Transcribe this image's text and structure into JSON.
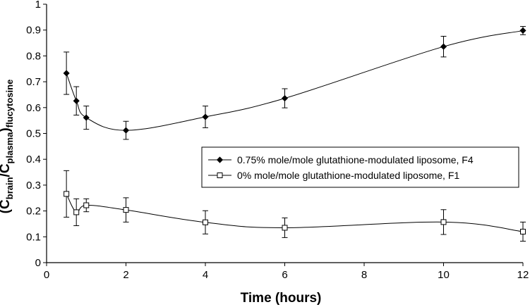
{
  "chart_data": {
    "type": "line",
    "xlabel": "Time (hours)",
    "ylabel": {
      "parts": [
        {
          "text": "(C",
          "sub": false
        },
        {
          "text": "brain",
          "sub": true
        },
        {
          "text": "/C",
          "sub": false
        },
        {
          "text": "plasma",
          "sub": true
        },
        {
          "text": ")",
          "sub": false
        },
        {
          "text": "flucytosine",
          "sub": true
        }
      ]
    },
    "xlim": [
      0,
      12
    ],
    "ylim": [
      0,
      1
    ],
    "xticks": [
      "0",
      "2",
      "4",
      "6",
      "8",
      "10",
      "12"
    ],
    "yticks": [
      "0",
      "0.1",
      "0.2",
      "0.3",
      "0.4",
      "0.5",
      "0.6",
      "0.7",
      "0.8",
      "0.9",
      "1"
    ],
    "grid": false,
    "legend_position": "center-right",
    "series": [
      {
        "name": "0.75% mole/mole glutathione-modulated liposome, F4",
        "marker": "filled-diamond",
        "color": "#000000",
        "x": [
          0.5,
          0.75,
          1,
          2,
          4,
          6,
          10,
          12
        ],
        "y": [
          0.733,
          0.626,
          0.561,
          0.512,
          0.564,
          0.636,
          0.836,
          0.898
        ],
        "err": [
          0.082,
          0.055,
          0.045,
          0.035,
          0.042,
          0.037,
          0.04,
          0.016
        ]
      },
      {
        "name": "0% mole/mole glutathione-modulated liposome, F1",
        "marker": "open-square",
        "color": "#000000",
        "x": [
          0.5,
          0.75,
          1,
          2,
          4,
          6,
          10,
          12
        ],
        "y": [
          0.266,
          0.195,
          0.222,
          0.204,
          0.156,
          0.135,
          0.157,
          0.12
        ],
        "err": [
          0.09,
          0.052,
          0.025,
          0.047,
          0.045,
          0.038,
          0.048,
          0.037
        ]
      }
    ]
  }
}
